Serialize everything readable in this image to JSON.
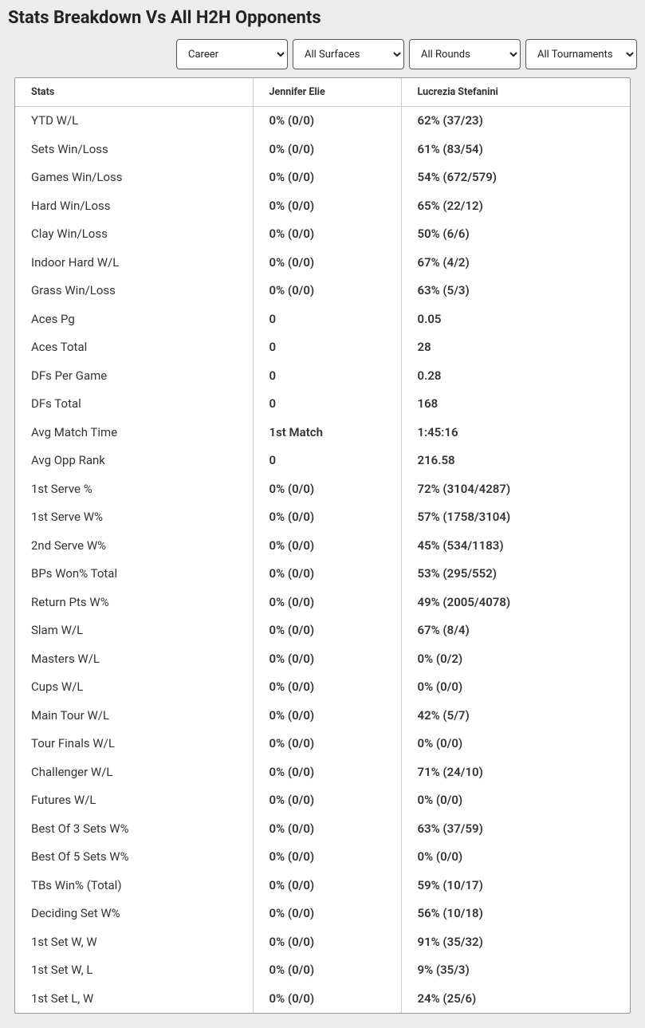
{
  "title": "Stats Breakdown Vs All H2H Opponents",
  "filters": {
    "career": {
      "label": "Career",
      "options": [
        "Career"
      ]
    },
    "surface": {
      "label": "All Surfaces",
      "options": [
        "All Surfaces"
      ]
    },
    "rounds": {
      "label": "All Rounds",
      "options": [
        "All Rounds"
      ]
    },
    "tournaments": {
      "label": "All Tournaments",
      "options": [
        "All Tournaments"
      ]
    }
  },
  "columns": {
    "stat": "Stats",
    "p1": "Jennifer Elie",
    "p2": "Lucrezia Stefanini"
  },
  "rows": [
    {
      "stat": "YTD W/L",
      "p1": "0% (0/0)",
      "p2": "62% (37/23)"
    },
    {
      "stat": "Sets Win/Loss",
      "p1": "0% (0/0)",
      "p2": "61% (83/54)"
    },
    {
      "stat": "Games Win/Loss",
      "p1": "0% (0/0)",
      "p2": "54% (672/579)"
    },
    {
      "stat": "Hard Win/Loss",
      "p1": "0% (0/0)",
      "p2": "65% (22/12)"
    },
    {
      "stat": "Clay Win/Loss",
      "p1": "0% (0/0)",
      "p2": "50% (6/6)"
    },
    {
      "stat": "Indoor Hard W/L",
      "p1": "0% (0/0)",
      "p2": "67% (4/2)"
    },
    {
      "stat": "Grass Win/Loss",
      "p1": "0% (0/0)",
      "p2": "63% (5/3)"
    },
    {
      "stat": "Aces Pg",
      "p1": "0",
      "p2": "0.05"
    },
    {
      "stat": "Aces Total",
      "p1": "0",
      "p2": "28"
    },
    {
      "stat": "DFs Per Game",
      "p1": "0",
      "p2": "0.28"
    },
    {
      "stat": "DFs Total",
      "p1": "0",
      "p2": "168"
    },
    {
      "stat": "Avg Match Time",
      "p1": "1st Match",
      "p2": "1:45:16"
    },
    {
      "stat": "Avg Opp Rank",
      "p1": "0",
      "p2": "216.58"
    },
    {
      "stat": "1st Serve %",
      "p1": "0% (0/0)",
      "p2": "72% (3104/4287)"
    },
    {
      "stat": "1st Serve W%",
      "p1": "0% (0/0)",
      "p2": "57% (1758/3104)"
    },
    {
      "stat": "2nd Serve W%",
      "p1": "0% (0/0)",
      "p2": "45% (534/1183)"
    },
    {
      "stat": "BPs Won% Total",
      "p1": "0% (0/0)",
      "p2": "53% (295/552)"
    },
    {
      "stat": "Return Pts W%",
      "p1": "0% (0/0)",
      "p2": "49% (2005/4078)"
    },
    {
      "stat": "Slam W/L",
      "p1": "0% (0/0)",
      "p2": "67% (8/4)"
    },
    {
      "stat": "Masters W/L",
      "p1": "0% (0/0)",
      "p2": "0% (0/2)"
    },
    {
      "stat": "Cups W/L",
      "p1": "0% (0/0)",
      "p2": "0% (0/0)"
    },
    {
      "stat": "Main Tour W/L",
      "p1": "0% (0/0)",
      "p2": "42% (5/7)"
    },
    {
      "stat": "Tour Finals W/L",
      "p1": "0% (0/0)",
      "p2": "0% (0/0)"
    },
    {
      "stat": "Challenger W/L",
      "p1": "0% (0/0)",
      "p2": "71% (24/10)"
    },
    {
      "stat": "Futures W/L",
      "p1": "0% (0/0)",
      "p2": "0% (0/0)"
    },
    {
      "stat": "Best Of 3 Sets W%",
      "p1": "0% (0/0)",
      "p2": "63% (37/59)"
    },
    {
      "stat": "Best Of 5 Sets W%",
      "p1": "0% (0/0)",
      "p2": "0% (0/0)"
    },
    {
      "stat": "TBs Win% (Total)",
      "p1": "0% (0/0)",
      "p2": "59% (10/17)"
    },
    {
      "stat": "Deciding Set W%",
      "p1": "0% (0/0)",
      "p2": "56% (10/18)"
    },
    {
      "stat": "1st Set W, W",
      "p1": "0% (0/0)",
      "p2": "91% (35/32)"
    },
    {
      "stat": "1st Set W, L",
      "p1": "0% (0/0)",
      "p2": "9% (35/3)"
    },
    {
      "stat": "1st Set L, W",
      "p1": "0% (0/0)",
      "p2": "24% (25/6)"
    }
  ],
  "styling": {
    "page_bg": "#ececec",
    "table_bg": "#ffffff",
    "border_color": "#999999",
    "cell_divider": "#cccccc",
    "header_fontsize": 12.5,
    "cell_fontsize": 15,
    "stat_fontweight": 400,
    "value_fontweight": 600,
    "title_fontsize": 22
  }
}
